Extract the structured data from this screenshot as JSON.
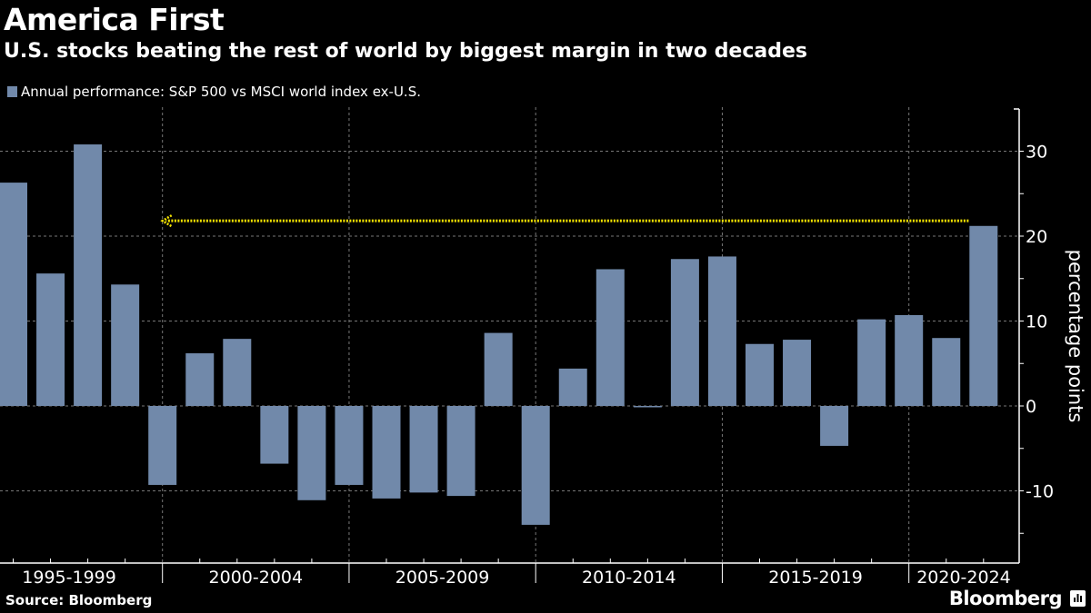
{
  "header": {
    "title": "America First",
    "subtitle": "U.S. stocks beating the rest of world by biggest margin in two decades"
  },
  "footer": {
    "source": "Source: Bloomberg",
    "brand": "Bloomberg",
    "brand_icon": "bloomberg-chart-icon"
  },
  "colors": {
    "background": "#000000",
    "bar": "#7189aa",
    "annotation": "#f5e400",
    "grid": "#777777",
    "text": "#ffffff"
  },
  "chart_data": {
    "type": "bar",
    "title": "America First",
    "subtitle": "U.S. stocks beating the rest of world by biggest margin in two decades",
    "legend": [
      {
        "name": "Annual performance: S&P 500 vs MSCI world index ex-U.S.",
        "color": "#7189aa"
      }
    ],
    "legend_position": "top-left",
    "xlabel": "",
    "ylabel": "percentage points",
    "y_axis_side": "right",
    "ylim": [
      -18.5,
      35
    ],
    "yticks": [
      -10,
      0,
      10,
      20,
      30
    ],
    "ytick_labels": [
      "-10",
      "0",
      "10",
      "20",
      "30"
    ],
    "xlim": [
      1994.35,
      2022
    ],
    "x_group_labels": [
      {
        "label": "1995-1999",
        "start": 1995,
        "end": 2000
      },
      {
        "label": "2000-2004",
        "start": 2000,
        "end": 2005
      },
      {
        "label": "2005-2009",
        "start": 2005,
        "end": 2010
      },
      {
        "label": "2010-2014",
        "start": 2010,
        "end": 2015
      },
      {
        "label": "2015-2019",
        "start": 2015,
        "end": 2020
      },
      {
        "label": "2020-2024",
        "start": 2020,
        "end": 2025
      }
    ],
    "grid": true,
    "categories": [
      "1995",
      "1996",
      "1997",
      "1998",
      "1999",
      "2000",
      "2001",
      "2002",
      "2003",
      "2004",
      "2005",
      "2006",
      "2007",
      "2008",
      "2009",
      "2010",
      "2011",
      "2012",
      "2013",
      "2014",
      "2015",
      "2016",
      "2017",
      "2018",
      "2019",
      "2020",
      "2021"
    ],
    "series": [
      {
        "name": "Annual performance: S&P 500 vs MSCI world index ex-U.S.",
        "values": [
          26.3,
          15.6,
          30.8,
          14.3,
          -9.3,
          6.2,
          7.9,
          -6.8,
          -11.1,
          -9.3,
          -10.9,
          -10.2,
          -10.6,
          8.6,
          -14.0,
          4.4,
          16.1,
          -0.1,
          17.3,
          17.6,
          7.3,
          7.8,
          -4.7,
          10.2,
          10.7,
          8.0,
          21.2
        ]
      }
    ],
    "annotations": [
      {
        "type": "arrow",
        "style": "dotted",
        "color": "#f5e400",
        "y": 21.8,
        "x_from": 2020.6,
        "x_to": 1999.0,
        "direction": "left"
      }
    ]
  }
}
